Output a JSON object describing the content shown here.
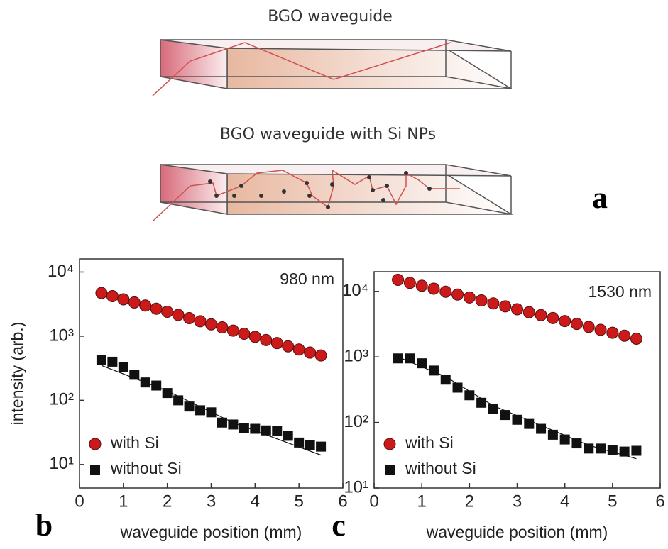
{
  "diagram": {
    "title_top": "BGO waveguide",
    "title_bottom": "BGO waveguide with Si NPs",
    "panel_label": "a"
  },
  "chart_data": [
    {
      "type": "scatter",
      "panel_label": "b",
      "annotation": "980 nm",
      "y_label": "intensity (arb.)",
      "x_label": "waveguide position (mm)",
      "x": [
        0.5,
        0.75,
        1,
        1.25,
        1.5,
        1.75,
        2,
        2.25,
        2.5,
        2.75,
        3,
        3.25,
        3.5,
        3.75,
        4,
        4.25,
        4.5,
        4.75,
        5,
        5.25,
        5.5
      ],
      "series": [
        {
          "name": "with Si",
          "color": "#cc1a1a",
          "marker": "circle",
          "values": [
            4700,
            4200,
            3750,
            3350,
            3000,
            2680,
            2400,
            2140,
            1910,
            1710,
            1530,
            1370,
            1220,
            1090,
            975,
            870,
            780,
            695,
            620,
            555,
            500
          ]
        },
        {
          "name": "without Si",
          "color": "#111111",
          "marker": "square",
          "values": [
            430,
            400,
            330,
            250,
            190,
            170,
            130,
            100,
            80,
            70,
            65,
            45,
            42,
            37,
            36,
            34,
            33,
            28,
            22,
            20,
            19
          ]
        }
      ],
      "fits": [
        {
          "color": "#111111",
          "x": [
            0.5,
            2,
            3.5,
            5.5
          ],
          "values": [
            350,
            140,
            45,
            14
          ]
        }
      ],
      "xlim": [
        0,
        6
      ],
      "xticks": [
        0,
        1,
        2,
        3,
        4,
        5,
        6
      ],
      "ylim": [
        4.3,
        16000
      ],
      "yticks": [
        {
          "value": 10,
          "label": "10¹"
        },
        {
          "value": 100,
          "label": "10²"
        },
        {
          "value": 1000,
          "label": "10³"
        },
        {
          "value": 10000,
          "label": "10⁴"
        }
      ],
      "log_y": true,
      "legend": "lower left"
    },
    {
      "type": "scatter",
      "panel_label": "c",
      "annotation": "1530 nm",
      "x_label": "waveguide position (mm)",
      "x": [
        0.5,
        0.75,
        1,
        1.25,
        1.5,
        1.75,
        2,
        2.25,
        2.5,
        2.75,
        3,
        3.25,
        3.5,
        3.75,
        4,
        4.25,
        4.5,
        4.75,
        5,
        5.25,
        5.5
      ],
      "series": [
        {
          "name": "with Si",
          "color": "#cc1a1a",
          "marker": "circle",
          "values": [
            15000,
            13500,
            12200,
            11000,
            9900,
            8950,
            8070,
            7280,
            6560,
            5920,
            5340,
            4810,
            4340,
            3920,
            3530,
            3190,
            2870,
            2590,
            2340,
            2110,
            1900
          ]
        },
        {
          "name": "without Si",
          "color": "#111111",
          "marker": "square",
          "values": [
            950,
            950,
            800,
            620,
            450,
            340,
            260,
            200,
            160,
            130,
            110,
            95,
            80,
            65,
            55,
            48,
            40,
            40,
            38,
            36,
            37
          ]
        }
      ],
      "fits": [
        {
          "color": "#111111",
          "x": [
            0.5,
            1.5,
            2.5,
            3.5,
            4.5,
            5.5
          ],
          "values": [
            1000,
            500,
            180,
            90,
            45,
            28
          ]
        }
      ],
      "xlim": [
        0,
        6
      ],
      "xticks": [
        0,
        1,
        2,
        3,
        4,
        5,
        6
      ],
      "ylim": [
        10,
        20000
      ],
      "yticks": [
        {
          "value": 10,
          "label": "10¹"
        },
        {
          "value": 100,
          "label": "10²"
        },
        {
          "value": 1000,
          "label": "10³"
        },
        {
          "value": 10000,
          "label": "10⁴"
        }
      ],
      "log_y": true,
      "legend": "lower left"
    }
  ]
}
